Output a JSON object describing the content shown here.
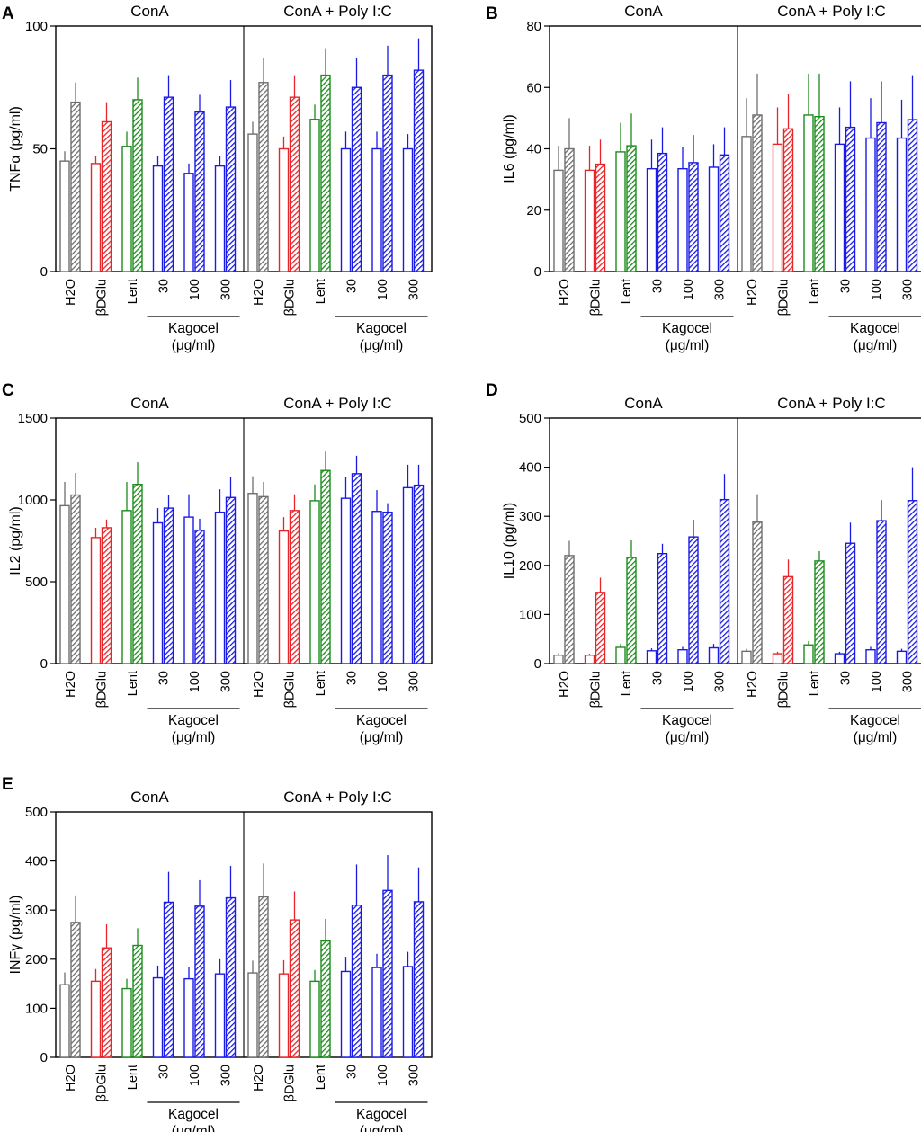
{
  "figure": {
    "categories": [
      "H2O",
      "βDGlu",
      "Lent",
      "30",
      "100",
      "300"
    ],
    "kagocel_label": "Kagocel",
    "unit_label": "(μg/ml)",
    "conditions": [
      "ConA",
      "ConA + Poly I:C"
    ],
    "bar_colors": [
      "#6e6e6e",
      "#e8262a",
      "#1c8c1c",
      "#1a1ae6",
      "#1a1ae6",
      "#1a1ae6"
    ]
  },
  "chart_data": [
    {
      "type": "bar",
      "panel": "A",
      "ylabel": "TNFα (pg/ml)",
      "ylim": [
        0,
        100
      ],
      "yticks": [
        0,
        50,
        100
      ],
      "conditions": [
        "ConA",
        "ConA + Poly I:C"
      ],
      "categories": [
        "H2O",
        "βDGlu",
        "Lent",
        "30",
        "100",
        "300"
      ],
      "series": [
        {
          "condition": "ConA",
          "name": "open",
          "values": [
            45,
            44,
            51,
            43,
            40,
            43
          ],
          "errors": [
            4,
            3,
            6,
            4,
            4,
            4
          ]
        },
        {
          "condition": "ConA",
          "name": "hatched",
          "values": [
            69,
            61,
            70,
            71,
            65,
            67
          ],
          "errors": [
            8,
            8,
            9,
            9,
            7,
            11
          ]
        },
        {
          "condition": "ConA + Poly I:C",
          "name": "open",
          "values": [
            56,
            50,
            62,
            50,
            50,
            50
          ],
          "errors": [
            5,
            5,
            6,
            7,
            7,
            6
          ]
        },
        {
          "condition": "ConA + Poly I:C",
          "name": "hatched",
          "values": [
            77,
            71,
            80,
            75,
            80,
            82
          ],
          "errors": [
            10,
            9,
            11,
            12,
            12,
            13
          ]
        }
      ]
    },
    {
      "type": "bar",
      "panel": "B",
      "ylabel": "IL6 (pg/ml)",
      "ylim": [
        0,
        80
      ],
      "yticks": [
        0,
        20,
        40,
        60,
        80
      ],
      "conditions": [
        "ConA",
        "ConA + Poly I:C"
      ],
      "categories": [
        "H2O",
        "βDGlu",
        "Lent",
        "30",
        "100",
        "300"
      ],
      "series": [
        {
          "condition": "ConA",
          "name": "open",
          "values": [
            33,
            33,
            39,
            33.5,
            33.5,
            34
          ],
          "errors": [
            8,
            8,
            9.5,
            9.5,
            7,
            7.5
          ]
        },
        {
          "condition": "ConA",
          "name": "hatched",
          "values": [
            40,
            35,
            41,
            38.5,
            35.5,
            38
          ],
          "errors": [
            10,
            8,
            10.5,
            8.5,
            9,
            9
          ]
        },
        {
          "condition": "ConA + Poly I:C",
          "name": "open",
          "values": [
            44,
            41.5,
            51,
            41.5,
            43.5,
            43.5
          ],
          "errors": [
            12.5,
            12,
            13.5,
            12,
            13,
            12.5
          ]
        },
        {
          "condition": "ConA + Poly I:C",
          "name": "hatched",
          "values": [
            51,
            46.5,
            50.5,
            47,
            48.5,
            49.5
          ],
          "errors": [
            13.5,
            11.5,
            14,
            15,
            13.5,
            14.5
          ]
        }
      ]
    },
    {
      "type": "bar",
      "panel": "C",
      "ylabel": "IL2 (pg/ml)",
      "ylim": [
        0,
        1500
      ],
      "yticks": [
        0,
        500,
        1000,
        1500
      ],
      "conditions": [
        "ConA",
        "ConA + Poly I:C"
      ],
      "categories": [
        "H2O",
        "βDGlu",
        "Lent",
        "30",
        "100",
        "300"
      ],
      "series": [
        {
          "condition": "ConA",
          "name": "open",
          "values": [
            965,
            770,
            935,
            860,
            895,
            925
          ],
          "errors": [
            145,
            60,
            175,
            90,
            140,
            140
          ]
        },
        {
          "condition": "ConA",
          "name": "hatched",
          "values": [
            1030,
            830,
            1095,
            950,
            815,
            1015
          ],
          "errors": [
            135,
            50,
            135,
            80,
            70,
            125
          ]
        },
        {
          "condition": "ConA + Poly I:C",
          "name": "open",
          "values": [
            1040,
            810,
            995,
            1010,
            930,
            1075
          ],
          "errors": [
            105,
            85,
            100,
            130,
            130,
            140
          ]
        },
        {
          "condition": "ConA + Poly I:C",
          "name": "hatched",
          "values": [
            1020,
            935,
            1180,
            1160,
            925,
            1090
          ],
          "errors": [
            90,
            100,
            115,
            110,
            55,
            125
          ]
        }
      ]
    },
    {
      "type": "bar",
      "panel": "D",
      "ylabel": "IL10 (pg/ml)",
      "ylim": [
        0,
        500
      ],
      "yticks": [
        0,
        100,
        200,
        300,
        400,
        500
      ],
      "conditions": [
        "ConA",
        "ConA + Poly I:C"
      ],
      "categories": [
        "H2O",
        "βDGlu",
        "Lent",
        "30",
        "100",
        "300"
      ],
      "series": [
        {
          "condition": "ConA",
          "name": "open",
          "values": [
            17,
            17,
            33,
            26,
            28,
            32
          ],
          "errors": [
            4,
            3,
            7,
            5,
            6,
            8
          ]
        },
        {
          "condition": "ConA",
          "name": "hatched",
          "values": [
            220,
            145,
            216,
            224,
            258,
            334
          ],
          "errors": [
            30,
            30,
            35,
            20,
            35,
            52
          ]
        },
        {
          "condition": "ConA + Poly I:C",
          "name": "open",
          "values": [
            25,
            20,
            38,
            20,
            28,
            25
          ],
          "errors": [
            5,
            4,
            8,
            4,
            6,
            5
          ]
        },
        {
          "condition": "ConA + Poly I:C",
          "name": "hatched",
          "values": [
            288,
            177,
            209,
            245,
            291,
            332
          ],
          "errors": [
            57,
            35,
            20,
            42,
            42,
            68
          ]
        }
      ]
    },
    {
      "type": "bar",
      "panel": "E",
      "ylabel": "INFγ (pg/ml)",
      "ylim": [
        0,
        500
      ],
      "yticks": [
        0,
        100,
        200,
        300,
        400,
        500
      ],
      "conditions": [
        "ConA",
        "ConA + Poly I:C"
      ],
      "categories": [
        "H2O",
        "βDGlu",
        "Lent",
        "30",
        "100",
        "300"
      ],
      "series": [
        {
          "condition": "ConA",
          "name": "open",
          "values": [
            148,
            155,
            140,
            162,
            160,
            170
          ],
          "errors": [
            25,
            25,
            20,
            25,
            25,
            30
          ]
        },
        {
          "condition": "ConA",
          "name": "hatched",
          "values": [
            275,
            223,
            228,
            316,
            308,
            325
          ],
          "errors": [
            55,
            48,
            35,
            62,
            53,
            65
          ]
        },
        {
          "condition": "ConA + Poly I:C",
          "name": "open",
          "values": [
            172,
            170,
            155,
            175,
            183,
            185
          ],
          "errors": [
            25,
            28,
            23,
            30,
            28,
            30
          ]
        },
        {
          "condition": "ConA + Poly I:C",
          "name": "hatched",
          "values": [
            327,
            280,
            237,
            310,
            340,
            317
          ],
          "errors": [
            68,
            58,
            45,
            83,
            72,
            70
          ]
        }
      ]
    }
  ]
}
